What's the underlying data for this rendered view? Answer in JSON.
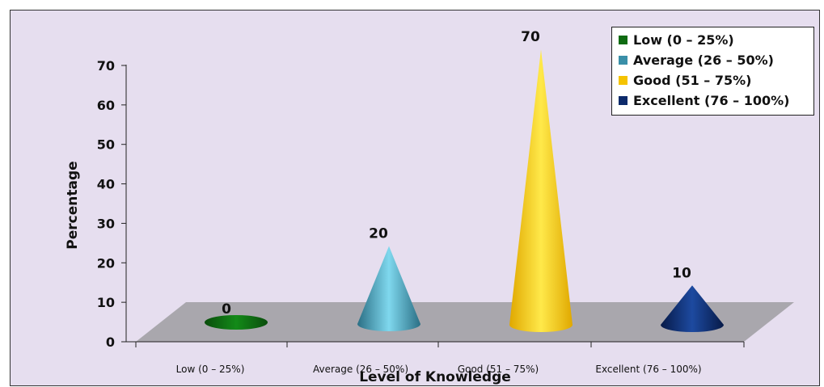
{
  "chart_data": {
    "type": "bar",
    "title": "",
    "xlabel": "Level of Knowledge",
    "ylabel": "Percentage",
    "categories": [
      "Low (0 – 25%)",
      "Average (26 – 50%)",
      "Good (51 – 75%)",
      "Excellent (76 – 100%)"
    ],
    "values": [
      0,
      20,
      70,
      10
    ],
    "value_labels": [
      "0",
      "20",
      "70",
      "10"
    ],
    "ylim": [
      0,
      70
    ],
    "yticks": [
      "0",
      "10",
      "20",
      "30",
      "40",
      "50",
      "60",
      "70"
    ],
    "shape": "cone",
    "grid": false,
    "legend_position": "top-right",
    "legend": [
      {
        "label": "Low (0 – 25%)",
        "color": "#0f6b12"
      },
      {
        "label": "Average (26 – 50%)",
        "color": "#3a8fa8"
      },
      {
        "label": "Good (51 – 75%)",
        "color": "#f5c300"
      },
      {
        "label": "Excellent (76 – 100%)",
        "color": "#0d2a6b"
      }
    ],
    "colors": {
      "background": "#e6deef",
      "floor": "#a9a7ad"
    }
  }
}
